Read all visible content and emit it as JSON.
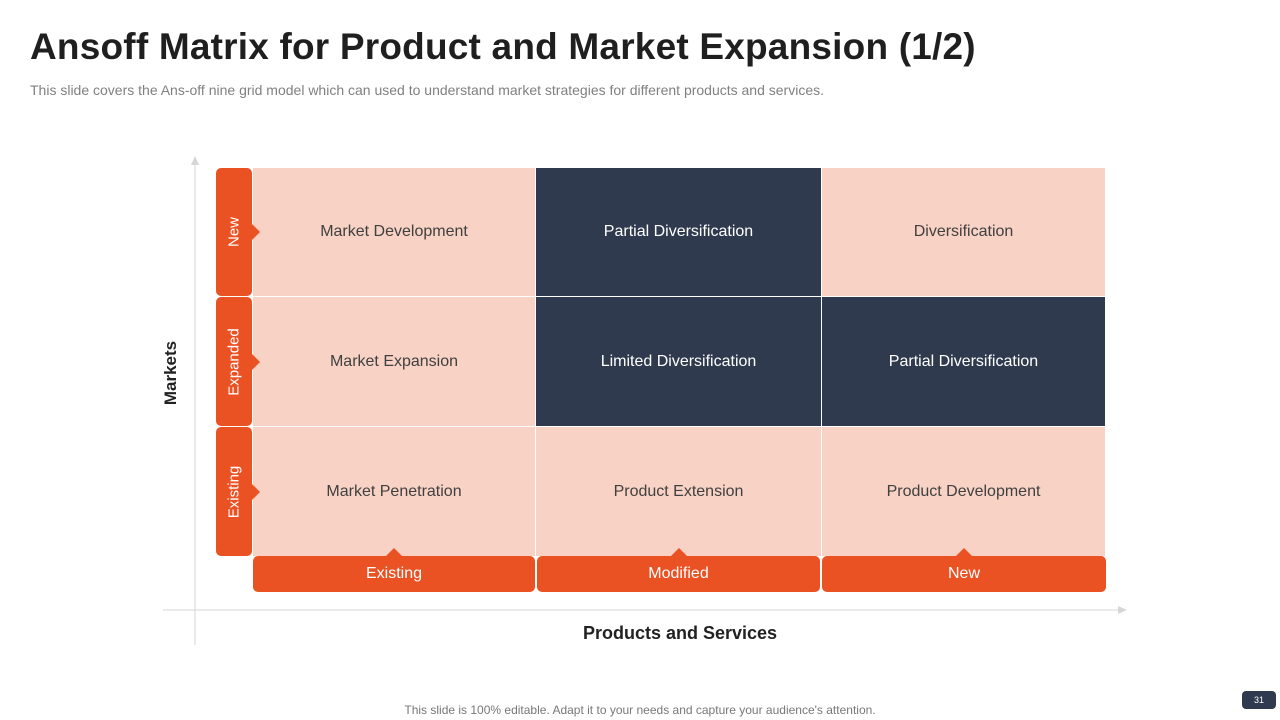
{
  "header": {
    "title": "Ansoff Matrix for Product and Market Expansion (1/2)",
    "subtitle": "This slide covers the Ans-off nine grid model which can used to understand market strategies for different products and services."
  },
  "axes": {
    "y_title": "Markets",
    "x_title": "Products and Services"
  },
  "markets": [
    "New",
    "Expanded",
    "Existing"
  ],
  "products": [
    "Existing",
    "Modified",
    "New"
  ],
  "matrix": [
    [
      "Market Development",
      "Partial Diversification",
      "Diversification"
    ],
    [
      "Market Expansion",
      "Limited Diversification",
      "Partial Diversification"
    ],
    [
      "Market Penetration",
      "Product Extension",
      "Product Development"
    ]
  ],
  "colors": {
    "accent": "#ea5123",
    "light_cell": "#f8d2c4",
    "dark_cell": "#2f3a4e"
  },
  "footer": {
    "note": "This slide is 100% editable. Adapt it to your needs and capture your audience's attention.",
    "page_number": "31"
  }
}
